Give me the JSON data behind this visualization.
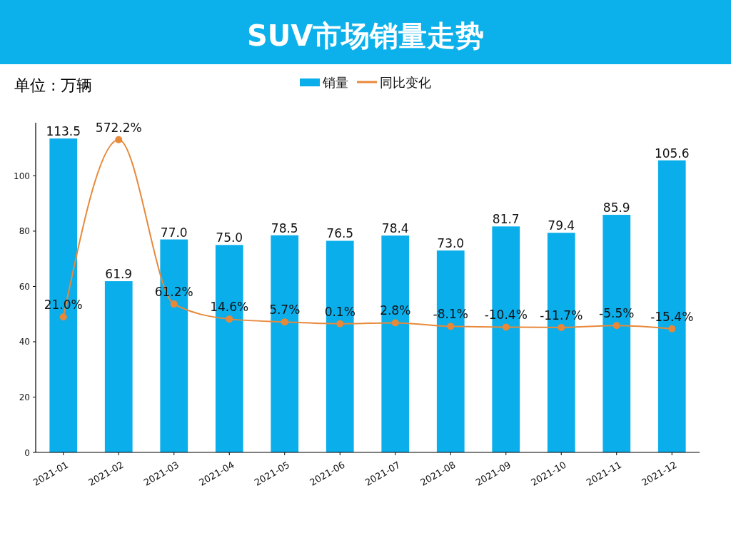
{
  "chart_data": {
    "type": "bar",
    "title": "SUV市场销量走势",
    "ylabel": "单位 : 万辆",
    "categories": [
      "2021-01",
      "2021-02",
      "2021-03",
      "2021-04",
      "2021-05",
      "2021-06",
      "2021-07",
      "2021-08",
      "2021-09",
      "2021-10",
      "2021-11",
      "2021-12"
    ],
    "series": [
      {
        "name": "销量",
        "color": "#0aaeeb",
        "values": [
          113.5,
          61.9,
          77.0,
          75.0,
          78.5,
          76.5,
          78.4,
          73.0,
          81.7,
          79.4,
          85.9,
          105.6
        ],
        "value_labels": [
          "113.5",
          "61.9",
          "77.0",
          "75.0",
          "78.5",
          "76.5",
          "78.4",
          "73.0",
          "81.7",
          "79.4",
          "85.9",
          "105.6"
        ]
      },
      {
        "name": "同比变化",
        "type": "line",
        "axis": "y2",
        "color": "#e8893a",
        "marker": "circle",
        "values": [
          21.0,
          572.2,
          61.2,
          14.6,
          5.7,
          0.1,
          2.8,
          -8.1,
          -10.4,
          -11.7,
          -5.5,
          -15.4
        ],
        "value_labels": [
          "21.0%",
          "572.2%",
          "61.2%",
          "14.6%",
          "5.7%",
          "0.1%",
          "2.8%",
          "-8.1%",
          "-10.4%",
          "-11.7%",
          "-5.5%",
          "-15.4%"
        ]
      }
    ],
    "ylim": [
      0,
      119.2
    ],
    "yticks": [
      0,
      20,
      40,
      60,
      80,
      100
    ],
    "y2lim": [
      -400,
      625
    ],
    "tick_labels": "xy",
    "legend": "top"
  }
}
